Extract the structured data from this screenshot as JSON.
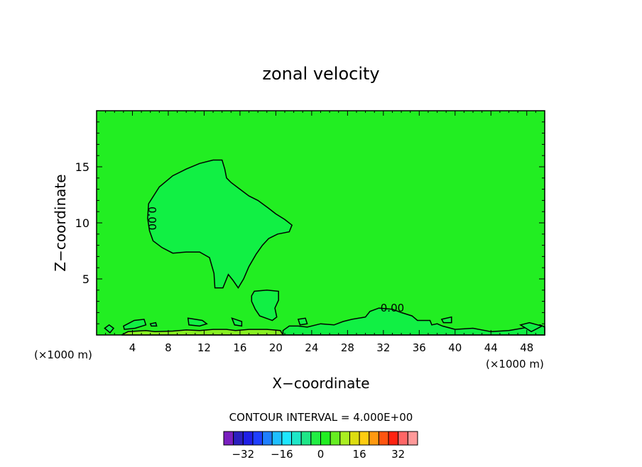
{
  "chart_data": {
    "type": "heatmap",
    "title": "zonal velocity",
    "xlabel": "X−coordinate",
    "ylabel": "Z−coordinate",
    "x_unit": "(×1000 m)",
    "y_unit": "(×1000 m)",
    "xlim": [
      0,
      50
    ],
    "ylim": [
      0,
      20
    ],
    "x_ticks": [
      4,
      8,
      12,
      16,
      20,
      24,
      28,
      32,
      36,
      40,
      44,
      48
    ],
    "y_ticks": [
      5,
      10,
      15
    ],
    "background_value_color": "#22ee22",
    "contour_interval_label": "CONTOUR INTERVAL = 4.000E+00",
    "contour_labels": [
      {
        "text": "0.00",
        "x": 5.8,
        "z": 10.4,
        "rotate": 90
      },
      {
        "text": "0.00",
        "x": 33.0,
        "z": 2.1,
        "rotate": 0
      }
    ],
    "regions": [
      {
        "name": "upper-left-blob",
        "fill": "#11f044",
        "points": [
          [
            5.8,
            11.7
          ],
          [
            7,
            13.2
          ],
          [
            8.5,
            14.2
          ],
          [
            10,
            14.8
          ],
          [
            11.5,
            15.3
          ],
          [
            13,
            15.6
          ],
          [
            14,
            15.6
          ],
          [
            14.3,
            14.8
          ],
          [
            14.5,
            14.0
          ],
          [
            15,
            13.6
          ],
          [
            16,
            13.0
          ],
          [
            17,
            12.4
          ],
          [
            18,
            12.0
          ],
          [
            19.2,
            11.3
          ],
          [
            20,
            10.8
          ],
          [
            21,
            10.3
          ],
          [
            21.8,
            9.8
          ],
          [
            21.5,
            9.2
          ],
          [
            20.2,
            9.0
          ],
          [
            19.2,
            8.6
          ],
          [
            18.5,
            8.0
          ],
          [
            17.8,
            7.2
          ],
          [
            17,
            6.1
          ],
          [
            16.4,
            5.0
          ],
          [
            15.8,
            4.2
          ],
          [
            15.2,
            4.9
          ],
          [
            14.7,
            5.4
          ],
          [
            14.1,
            4.2
          ],
          [
            13.2,
            4.2
          ],
          [
            13.1,
            5.5
          ],
          [
            12.6,
            6.9
          ],
          [
            11.5,
            7.4
          ],
          [
            10,
            7.4
          ],
          [
            8.5,
            7.3
          ],
          [
            7.3,
            7.8
          ],
          [
            6.3,
            8.4
          ],
          [
            5.9,
            9.3
          ],
          [
            5.7,
            10.4
          ],
          [
            5.8,
            11.7
          ]
        ]
      },
      {
        "name": "mid-blob",
        "fill": "#11f044",
        "points": [
          [
            17.3,
            3.5
          ],
          [
            17.6,
            3.9
          ],
          [
            19,
            4.0
          ],
          [
            20.3,
            3.9
          ],
          [
            20.3,
            3.1
          ],
          [
            19.9,
            2.4
          ],
          [
            20.1,
            1.6
          ],
          [
            19.6,
            1.3
          ],
          [
            18.2,
            1.7
          ],
          [
            17.7,
            2.3
          ],
          [
            17.3,
            3.0
          ],
          [
            17.3,
            3.5
          ]
        ]
      },
      {
        "name": "surface-band",
        "fill": "#11f044",
        "points": [
          [
            20.8,
            0
          ],
          [
            20.8,
            0.4
          ],
          [
            21.5,
            0.8
          ],
          [
            22.5,
            0.8
          ],
          [
            23.5,
            0.7
          ],
          [
            25,
            1.0
          ],
          [
            26.5,
            0.9
          ],
          [
            27.5,
            1.2
          ],
          [
            28.5,
            1.4
          ],
          [
            30,
            1.6
          ],
          [
            30.5,
            2.1
          ],
          [
            31.5,
            2.4
          ],
          [
            33,
            2.3
          ],
          [
            34,
            2.0
          ],
          [
            35.2,
            1.7
          ],
          [
            35.8,
            1.3
          ],
          [
            37.2,
            1.3
          ],
          [
            37.4,
            0.9
          ],
          [
            38,
            1.0
          ],
          [
            38.6,
            0.8
          ],
          [
            40,
            0.5
          ],
          [
            42,
            0.6
          ],
          [
            44,
            0.3
          ],
          [
            46,
            0.4
          ],
          [
            47.5,
            0.6
          ],
          [
            49.5,
            0.9
          ],
          [
            50,
            0.7
          ],
          [
            50,
            0
          ]
        ]
      },
      {
        "name": "surface-green-left",
        "fill": "#88f022",
        "points": [
          [
            2.8,
            0
          ],
          [
            3.5,
            0.3
          ],
          [
            5.5,
            0.4
          ],
          [
            6.5,
            0.3
          ],
          [
            8.5,
            0.35
          ],
          [
            10,
            0.45
          ],
          [
            11.5,
            0.4
          ],
          [
            13,
            0.5
          ],
          [
            14.5,
            0.5
          ],
          [
            15.5,
            0.4
          ],
          [
            17,
            0.5
          ],
          [
            19,
            0.5
          ],
          [
            20.5,
            0.4
          ],
          [
            20.8,
            0
          ]
        ]
      },
      {
        "name": "small-cell-1",
        "fill": "#11f044",
        "points": [
          [
            0.9,
            0.6
          ],
          [
            1.4,
            0.9
          ],
          [
            1.9,
            0.6
          ],
          [
            1.5,
            0.2
          ],
          [
            0.9,
            0.6
          ]
        ]
      },
      {
        "name": "small-cell-2",
        "fill": "#11f044",
        "points": [
          [
            3,
            0.8
          ],
          [
            4.2,
            1.3
          ],
          [
            5.3,
            1.4
          ],
          [
            5.5,
            0.9
          ],
          [
            4.3,
            0.6
          ],
          [
            3.1,
            0.5
          ],
          [
            3,
            0.8
          ]
        ]
      },
      {
        "name": "small-cell-3",
        "fill": "#11f044",
        "points": [
          [
            6,
            1.0
          ],
          [
            6.6,
            1.1
          ],
          [
            6.7,
            0.8
          ],
          [
            6.1,
            0.8
          ],
          [
            6,
            1.0
          ]
        ]
      },
      {
        "name": "small-cell-4",
        "fill": "#11f044",
        "points": [
          [
            10.2,
            1.5
          ],
          [
            11.8,
            1.3
          ],
          [
            12.3,
            1.0
          ],
          [
            11.5,
            0.8
          ],
          [
            10.3,
            0.9
          ],
          [
            10.2,
            1.5
          ]
        ]
      },
      {
        "name": "small-cell-5",
        "fill": "#11f044",
        "points": [
          [
            15.1,
            1.5
          ],
          [
            16.2,
            1.2
          ],
          [
            16.2,
            0.8
          ],
          [
            15.4,
            0.9
          ],
          [
            15.1,
            1.5
          ]
        ]
      },
      {
        "name": "small-cell-6",
        "fill": "#11f044",
        "points": [
          [
            22.5,
            1.4
          ],
          [
            23.3,
            1.5
          ],
          [
            23.5,
            1.0
          ],
          [
            22.7,
            0.9
          ],
          [
            22.5,
            1.4
          ]
        ]
      },
      {
        "name": "small-cell-7",
        "fill": "#11f044",
        "points": [
          [
            38.5,
            1.4
          ],
          [
            39.6,
            1.6
          ],
          [
            39.6,
            1.1
          ],
          [
            38.7,
            1.1
          ],
          [
            38.5,
            1.4
          ]
        ]
      },
      {
        "name": "small-cell-8",
        "fill": "#11f044",
        "points": [
          [
            47.3,
            0.9
          ],
          [
            48.3,
            1.1
          ],
          [
            49.7,
            0.8
          ],
          [
            48.5,
            0.3
          ],
          [
            47.3,
            0.9
          ]
        ]
      }
    ],
    "legend": {
      "colors": [
        "#7a1fbf",
        "#2b1fbf",
        "#1f1fe6",
        "#1f3fff",
        "#1f7fff",
        "#1fbfff",
        "#1fe6ff",
        "#1fe6c8",
        "#1fe688",
        "#22ee44",
        "#22ee22",
        "#66ee22",
        "#aaee22",
        "#dddd11",
        "#ffcc11",
        "#ff9911",
        "#ff5511",
        "#ff2211",
        "#ff6666",
        "#ff9999"
      ],
      "tick_labels": [
        "−32",
        "−16",
        "0",
        "16",
        "32"
      ],
      "tick_values": [
        -32,
        -16,
        0,
        16,
        32
      ],
      "value_min": -40,
      "value_max": 40
    }
  }
}
